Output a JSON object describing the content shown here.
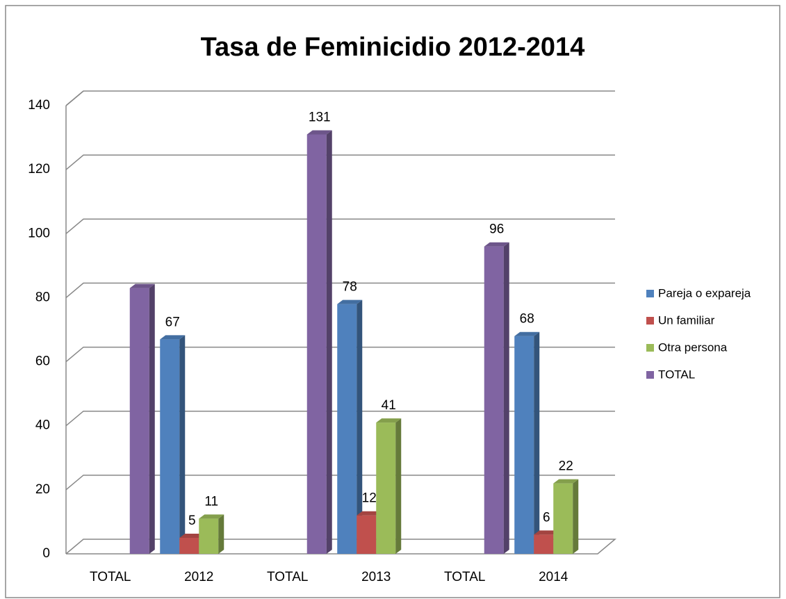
{
  "chart_data": {
    "type": "bar",
    "title": "Tasa de Feminicidio 2012-2014",
    "categories": [
      "TOTAL",
      "2012",
      "TOTAL",
      "2013",
      "TOTAL",
      "2014"
    ],
    "series": [
      {
        "name": "Pareja o expareja",
        "color": "#4f81bd",
        "values": [
          null,
          67,
          null,
          78,
          null,
          68
        ]
      },
      {
        "name": "Un familiar",
        "color": "#c0504d",
        "values": [
          null,
          5,
          null,
          12,
          null,
          6
        ]
      },
      {
        "name": "Otra persona",
        "color": "#9bbb59",
        "values": [
          null,
          11,
          null,
          41,
          null,
          22
        ]
      },
      {
        "name": "TOTAL",
        "color": "#8064a2",
        "values": [
          83,
          null,
          131,
          null,
          96,
          null
        ],
        "value_labels": [
          null,
          null,
          "131",
          null,
          "96",
          null
        ]
      }
    ],
    "ylim": [
      0,
      140
    ],
    "yticks": [
      0,
      20,
      40,
      60,
      80,
      100,
      120,
      140
    ],
    "grid": true,
    "legend": "right"
  }
}
